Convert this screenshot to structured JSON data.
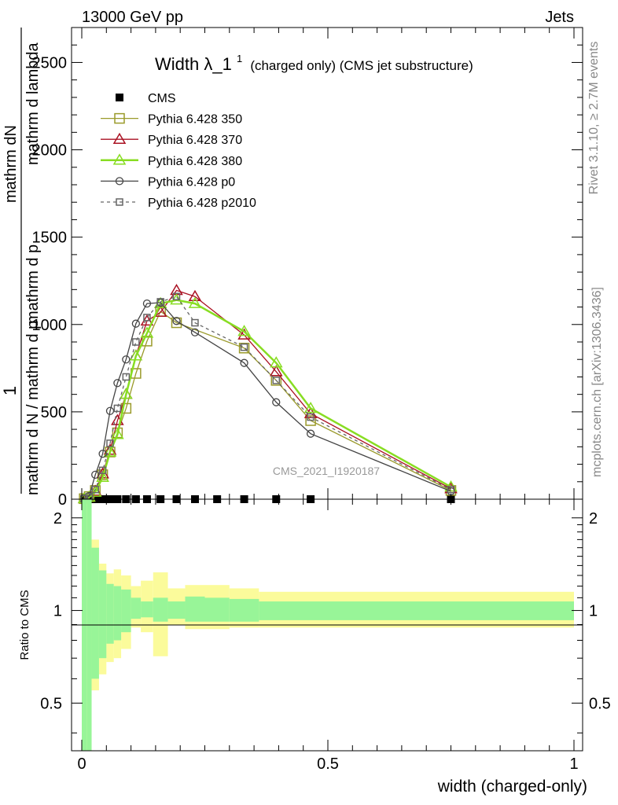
{
  "header": {
    "energy_label": "13000 GeV pp",
    "process_label": "Jets",
    "rivet_label": "Rivet 3.1.10, ≥ 2.7M events",
    "mcplots_label": "mcplots.cern.ch [arXiv:1306.3436]",
    "analysis_label": "CMS_2021_I1920187"
  },
  "main_plot": {
    "title_main": "Width λ_1",
    "title_sup": "1",
    "title_note": "(charged only) (CMS jet substructure)",
    "ylabel_prefix": "1",
    "ylabel_line1": "mathrm d N / mathrm d p",
    "ylabel_line2": "mathrm dN",
    "ylabel_line3": "mathrm d p",
    "ylabel_line4": "mathrm d lambda",
    "ylabel_sub": "T",
    "yticks": [
      "0",
      "500",
      "1000",
      "1500",
      "2000",
      "2500"
    ]
  },
  "ratio_plot": {
    "ylabel": "Ratio to CMS",
    "yticks": [
      "0.5",
      "1",
      "2"
    ],
    "xlabel": "width (charged-only)",
    "xticks": [
      "0",
      "0.5",
      "1"
    ]
  },
  "legend": {
    "cms": "CMS",
    "p350": "Pythia 6.428 350",
    "p370": "Pythia 6.428 370",
    "p380": "Pythia 6.428 380",
    "p0": "Pythia 6.428 p0",
    "p2010": "Pythia 6.428 p2010"
  },
  "colors": {
    "cms": "#000000",
    "p350": "#9a9a2a",
    "p370": "#aa1122",
    "p380": "#88dd22",
    "p0": "#444444",
    "p2010": "#666666",
    "band_inner": "#98f598",
    "band_outer": "#fbfb9b"
  },
  "chart_data": {
    "type": "line",
    "xlim": [
      0,
      1
    ],
    "ylim": [
      0,
      2700
    ],
    "ratio_ylim": [
      0.35,
      2.3
    ],
    "ratio_scale": "log",
    "bin_edges": [
      0,
      0.01,
      0.02,
      0.035,
      0.05,
      0.065,
      0.08,
      0.1,
      0.12,
      0.145,
      0.175,
      0.21,
      0.25,
      0.3,
      0.36,
      0.43,
      0.5,
      1.0
    ],
    "x": [
      0.005,
      0.015,
      0.0275,
      0.0425,
      0.0575,
      0.0725,
      0.09,
      0.11,
      0.1325,
      0.16,
      0.1925,
      0.23,
      0.275,
      0.33,
      0.395,
      0.465,
      0.75
    ],
    "series": [
      {
        "name": "CMS",
        "values": [
          0,
          0,
          0,
          0,
          0,
          0,
          0,
          0,
          0,
          0,
          0,
          0,
          0,
          0,
          0,
          0,
          0
        ]
      },
      {
        "name": "Pythia 6.428 350",
        "values": [
          3,
          15,
          50,
          140,
          270,
          380,
          520,
          720,
          905,
          1075,
          1010,
          null,
          null,
          865,
          680,
          450,
          50
        ]
      },
      {
        "name": "Pythia 6.428 370",
        "values": [
          3,
          12,
          45,
          145,
          280,
          450,
          600,
          820,
          1020,
          1070,
          1195,
          1160,
          null,
          940,
          730,
          490,
          60
        ]
      },
      {
        "name": "Pythia 6.428 380",
        "values": [
          3,
          12,
          40,
          125,
          270,
          370,
          600,
          820,
          950,
          1120,
          1140,
          1120,
          null,
          960,
          780,
          520,
          70
        ]
      },
      {
        "name": "Pythia 6.428 p0",
        "values": [
          5,
          18,
          140,
          260,
          505,
          665,
          800,
          1005,
          1120,
          1125,
          1020,
          955,
          null,
          780,
          555,
          375,
          45
        ]
      },
      {
        "name": "Pythia 6.428 p2010",
        "values": [
          3,
          14,
          55,
          165,
          320,
          520,
          700,
          900,
          1040,
          1130,
          1160,
          1010,
          null,
          870,
          680,
          470,
          55
        ]
      }
    ],
    "ratio_bands": {
      "inner_upper": [
        2.3,
        2.3,
        1.6,
        1.35,
        1.22,
        1.2,
        1.17,
        1.1,
        1.07,
        1.1,
        1.07,
        1.11,
        1.1,
        1.09,
        1.07
      ],
      "inner_lower": [
        0.35,
        0.35,
        0.6,
        0.7,
        0.78,
        0.8,
        0.85,
        0.94,
        0.95,
        0.92,
        0.94,
        0.92,
        0.92,
        0.92,
        0.93
      ],
      "outer_upper": [
        2.3,
        2.3,
        1.7,
        1.42,
        1.32,
        1.36,
        1.3,
        1.2,
        1.25,
        1.33,
        1.18,
        1.21,
        1.21,
        1.18,
        1.15
      ],
      "outer_lower": [
        0.35,
        0.35,
        0.55,
        0.62,
        0.68,
        0.7,
        0.75,
        0.88,
        0.85,
        0.71,
        0.9,
        0.87,
        0.87,
        0.88,
        0.88
      ]
    }
  }
}
